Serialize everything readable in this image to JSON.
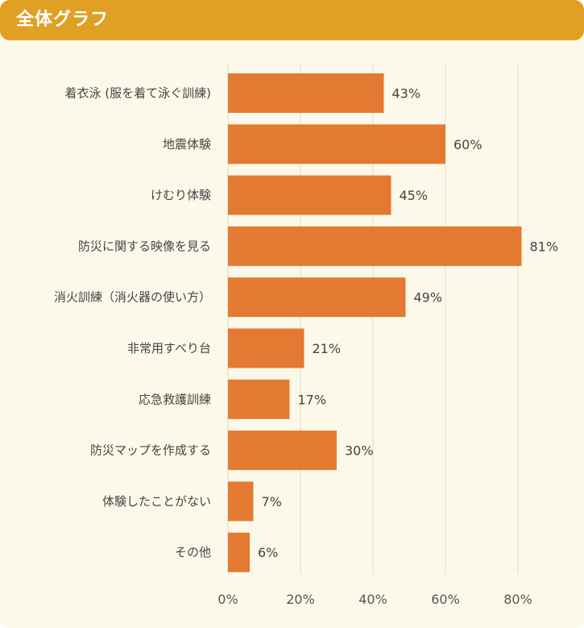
{
  "header": {
    "title": "全体グラフ"
  },
  "colors": {
    "header": "#e0a023",
    "bar": "#e47a32",
    "background": "#fdf9ea",
    "grid": "#e2dccb"
  },
  "chart_data": {
    "type": "bar",
    "orientation": "horizontal",
    "categories": [
      "着衣泳 (服を着て泳ぐ訓練)",
      "地震体験",
      "けむり体験",
      "防災に関する映像を見る",
      "消火訓練（消火器の使い方）",
      "非常用すべり台",
      "応急救護訓練",
      "防災マップを作成する",
      "体験したことがない",
      "その他"
    ],
    "values": [
      43,
      60,
      45,
      81,
      49,
      21,
      17,
      30,
      7,
      6
    ],
    "value_labels": [
      "43%",
      "60%",
      "45%",
      "81%",
      "49%",
      "21%",
      "17%",
      "30%",
      "7%",
      "6%"
    ],
    "xlim": [
      0,
      80
    ],
    "x_ticks": [
      0,
      20,
      40,
      60,
      80
    ],
    "x_tick_labels": [
      "0%",
      "20%",
      "40%",
      "60%",
      "80%"
    ],
    "grid": true
  }
}
